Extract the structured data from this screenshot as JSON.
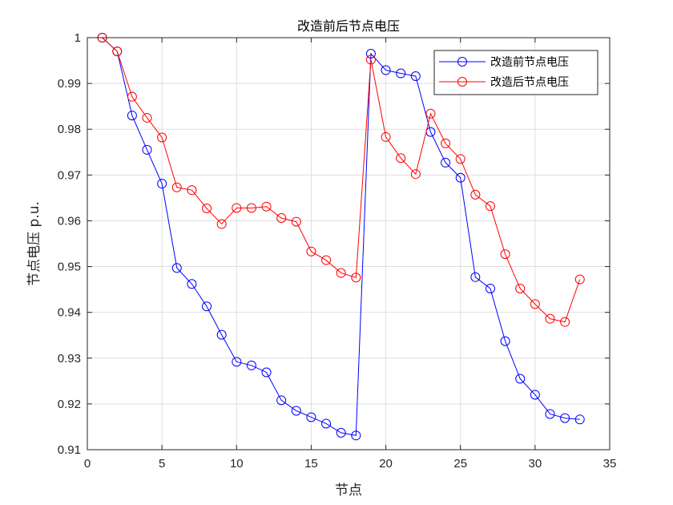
{
  "chart_data": {
    "type": "line",
    "title": "改造前后节点电压",
    "xlabel": "节点",
    "ylabel": "节点电压 p.u.",
    "xlim": [
      0,
      35
    ],
    "ylim": [
      0.91,
      1.0
    ],
    "xticks": [
      0,
      5,
      10,
      15,
      20,
      25,
      30,
      35
    ],
    "yticks": [
      0.91,
      0.92,
      0.93,
      0.94,
      0.95,
      0.96,
      0.97,
      0.98,
      0.99,
      1.0
    ],
    "xtick_labels": [
      "0",
      "5",
      "10",
      "15",
      "20",
      "25",
      "30",
      "35"
    ],
    "ytick_labels": [
      "0.91",
      "0.92",
      "0.93",
      "0.94",
      "0.95",
      "0.96",
      "0.97",
      "0.98",
      "0.99",
      "1"
    ],
    "grid": true,
    "legend_position": "top-right",
    "x": [
      1,
      2,
      3,
      4,
      5,
      6,
      7,
      8,
      9,
      10,
      11,
      12,
      13,
      14,
      15,
      16,
      17,
      18,
      19,
      20,
      21,
      22,
      23,
      24,
      25,
      26,
      27,
      28,
      29,
      30,
      31,
      32,
      33
    ],
    "series": [
      {
        "name": "改造前节点电压",
        "color": "#0000ff",
        "marker": "circle",
        "values": [
          1.0,
          0.997,
          0.983,
          0.9755,
          0.9681,
          0.9497,
          0.9462,
          0.9413,
          0.9351,
          0.9292,
          0.9284,
          0.9269,
          0.9208,
          0.9185,
          0.9171,
          0.9157,
          0.9137,
          0.9131,
          0.9965,
          0.9929,
          0.9922,
          0.9916,
          0.9794,
          0.9727,
          0.9694,
          0.9477,
          0.9452,
          0.9337,
          0.9255,
          0.922,
          0.9178,
          0.9169,
          0.9166
        ]
      },
      {
        "name": "改造后节点电压",
        "color": "#ff0000",
        "marker": "circle",
        "values": [
          1.0,
          0.997,
          0.9871,
          0.9825,
          0.9782,
          0.9673,
          0.9667,
          0.9627,
          0.9593,
          0.9628,
          0.9628,
          0.9631,
          0.9606,
          0.9598,
          0.9533,
          0.9514,
          0.9486,
          0.9476,
          0.9952,
          0.9783,
          0.9737,
          0.9702,
          0.9834,
          0.9769,
          0.9735,
          0.9657,
          0.9632,
          0.9527,
          0.9452,
          0.9418,
          0.9386,
          0.9379,
          0.9472
        ]
      }
    ]
  }
}
